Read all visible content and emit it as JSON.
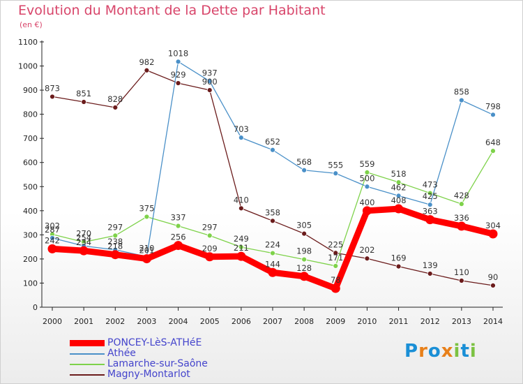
{
  "chart_data": {
    "type": "line",
    "title": "Evolution du Montant de la Dette par Habitant",
    "subtitle": "(en €)",
    "x": [
      "2000",
      "2001",
      "2002",
      "2003",
      "2004",
      "2005",
      "2006",
      "2007",
      "2008",
      "2009",
      "2010",
      "2011",
      "2012",
      "2013",
      "2014"
    ],
    "ylim": [
      0,
      1100
    ],
    "yticks": [
      0,
      100,
      200,
      300,
      400,
      500,
      600,
      700,
      800,
      900,
      1000,
      1100
    ],
    "grid": false,
    "legend_position": "bottom-left",
    "series": [
      {
        "name": "PONCEY-LèS-ATHéE",
        "color": "#ff0000",
        "values": [
          242,
          234,
          218,
          201,
          256,
          209,
          211,
          144,
          128,
          78,
          400,
          408,
          363,
          336,
          304
        ]
      },
      {
        "name": "Athée",
        "color": "#4a90c8",
        "values": [
          287,
          254,
          238,
          210,
          1018,
          937,
          703,
          652,
          568,
          555,
          500,
          462,
          425,
          858,
          798
        ]
      },
      {
        "name": "Lamarche-sur-Saône",
        "color": "#7ed24a",
        "values": [
          302,
          270,
          297,
          375,
          337,
          297,
          249,
          224,
          198,
          171,
          559,
          518,
          473,
          428,
          648
        ]
      },
      {
        "name": "Magny-Montarlot",
        "color": "#6b1c1c",
        "values": [
          873,
          851,
          828,
          982,
          929,
          900,
          410,
          358,
          305,
          225,
          202,
          169,
          139,
          110,
          90
        ]
      }
    ]
  },
  "logo": {
    "text": "Proxiti",
    "letters": [
      "P",
      "r",
      "o",
      "x",
      "i",
      "t",
      "i"
    ],
    "colors": [
      "#1a8fd6",
      "#e8801a",
      "#1a8fd6",
      "#e8801a",
      "#7cc242",
      "#1a8fd6",
      "#7cc242"
    ]
  }
}
